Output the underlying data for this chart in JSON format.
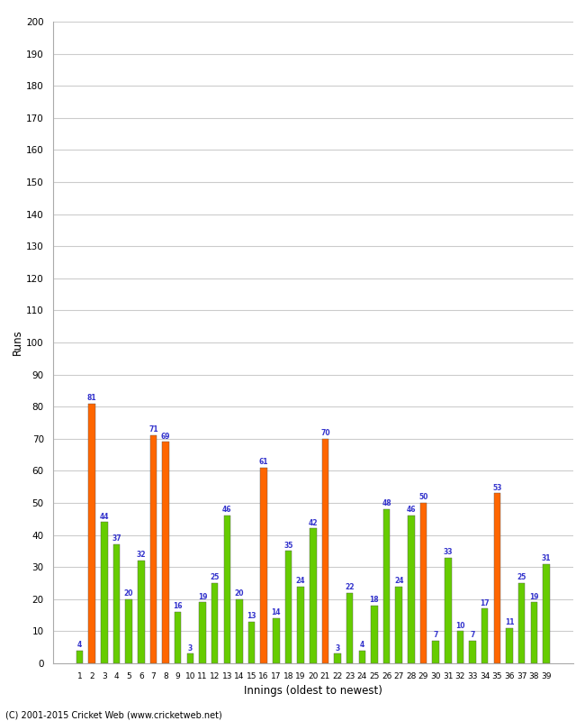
{
  "innings": [
    1,
    2,
    3,
    4,
    5,
    6,
    7,
    8,
    9,
    10,
    11,
    12,
    13,
    14,
    15,
    16,
    17,
    18,
    19,
    20,
    21,
    22,
    23,
    24,
    25,
    26,
    27,
    28,
    29,
    30,
    31,
    32,
    33,
    34,
    35,
    36,
    37,
    38,
    39
  ],
  "values": [
    4,
    81,
    44,
    37,
    20,
    32,
    71,
    69,
    16,
    3,
    19,
    25,
    46,
    20,
    13,
    61,
    14,
    35,
    24,
    42,
    70,
    3,
    22,
    4,
    18,
    48,
    24,
    46,
    50,
    7,
    33,
    10,
    7,
    17,
    53,
    11,
    25,
    19,
    31
  ],
  "colors": [
    "#66cc00",
    "#ff6600",
    "#66cc00",
    "#66cc00",
    "#66cc00",
    "#66cc00",
    "#ff6600",
    "#ff6600",
    "#66cc00",
    "#66cc00",
    "#66cc00",
    "#66cc00",
    "#66cc00",
    "#66cc00",
    "#66cc00",
    "#ff6600",
    "#66cc00",
    "#66cc00",
    "#66cc00",
    "#66cc00",
    "#ff6600",
    "#66cc00",
    "#66cc00",
    "#66cc00",
    "#66cc00",
    "#66cc00",
    "#66cc00",
    "#66cc00",
    "#ff6600",
    "#66cc00",
    "#66cc00",
    "#66cc00",
    "#66cc00",
    "#66cc00",
    "#ff6600",
    "#66cc00",
    "#66cc00",
    "#66cc00",
    "#66cc00"
  ],
  "xlabel": "Innings (oldest to newest)",
  "ylabel": "Runs",
  "ylim": [
    0,
    200
  ],
  "yticks": [
    0,
    10,
    20,
    30,
    40,
    50,
    60,
    70,
    80,
    90,
    100,
    110,
    120,
    130,
    140,
    150,
    160,
    170,
    180,
    190,
    200
  ],
  "footer": "(C) 2001-2015 Cricket Web (www.cricketweb.net)",
  "label_color": "#3333cc",
  "bar_edge_color": "#555555",
  "background_color": "#ffffff",
  "grid_color": "#cccccc"
}
